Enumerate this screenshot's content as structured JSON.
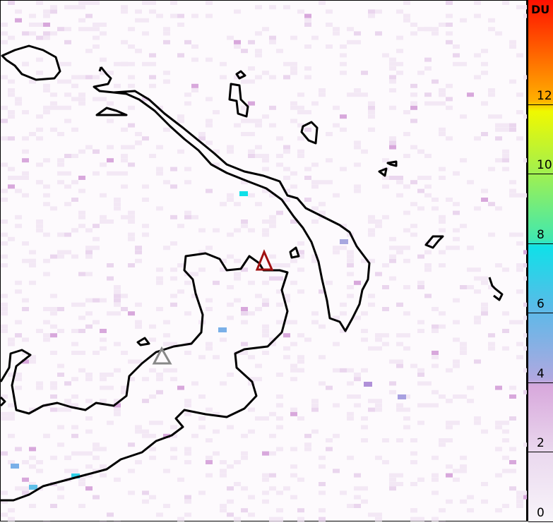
{
  "colorbar": {
    "unit": "DU",
    "ticks": [
      "0",
      "2",
      "4",
      "6",
      "8",
      "10",
      "12"
    ],
    "range": [
      0,
      15
    ],
    "colors": [
      "#f8f4fa",
      "#e8d4ec",
      "#d8a8dc",
      "#a8a8e0",
      "#5ab8e8",
      "#10e0e8",
      "#50e8a0",
      "#90f050",
      "#f0f000",
      "#ffa000",
      "#ff5000",
      "#ff1000"
    ]
  },
  "markers": [
    {
      "name": "volcano-active",
      "color": "#a01010"
    },
    {
      "name": "volcano",
      "color": "#888888"
    }
  ],
  "coast_color": "#000000"
}
